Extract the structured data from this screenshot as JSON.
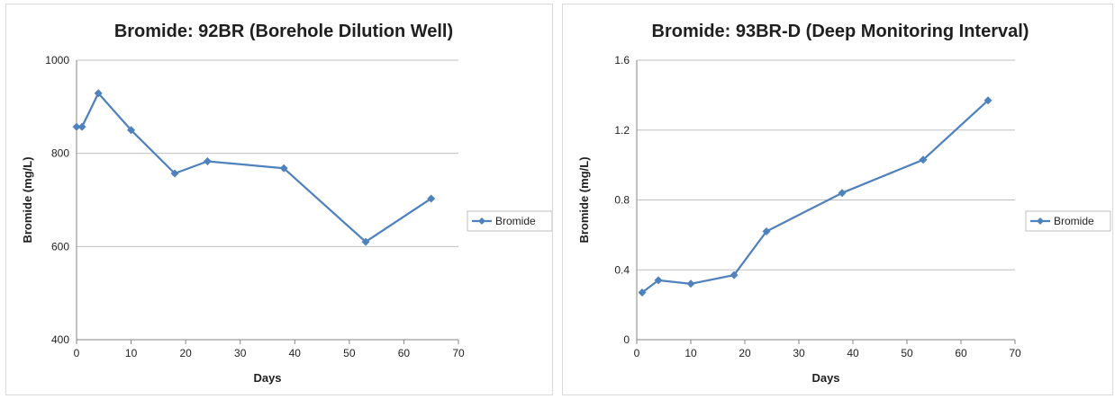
{
  "chart_data": [
    {
      "type": "line",
      "title": "Bromide: 92BR (Borehole Dilution Well)",
      "xlabel": "Days",
      "ylabel": "Bromide (mg/L)",
      "xlim": [
        0,
        70
      ],
      "ylim": [
        400,
        1000
      ],
      "xticks": [
        "0",
        "10",
        "20",
        "30",
        "40",
        "50",
        "60",
        "70"
      ],
      "yticks": [
        "400",
        "600",
        "800",
        "1000"
      ],
      "grid": "horizontal",
      "legend": "right",
      "series": [
        {
          "name": "Bromide",
          "color": "#4f81bd",
          "marker": "diamond",
          "x": [
            0,
            1,
            4,
            10,
            18,
            24,
            38,
            53,
            65
          ],
          "y": [
            857,
            857,
            929,
            850,
            757,
            783,
            768,
            610,
            703
          ]
        }
      ]
    },
    {
      "type": "line",
      "title": "Bromide: 93BR-D (Deep Monitoring Interval)",
      "xlabel": "Days",
      "ylabel": "Bromide (mg/L)",
      "xlim": [
        0,
        70
      ],
      "ylim": [
        0,
        1.6
      ],
      "xticks": [
        "0",
        "10",
        "20",
        "30",
        "40",
        "50",
        "60",
        "70"
      ],
      "yticks": [
        "0",
        "0.4",
        "0.8",
        "1.2",
        "1.6"
      ],
      "grid": "horizontal",
      "legend": "right",
      "series": [
        {
          "name": "Bromide",
          "color": "#4f81bd",
          "marker": "diamond",
          "x": [
            1,
            4,
            10,
            18,
            24,
            38,
            53,
            65
          ],
          "y": [
            0.27,
            0.34,
            0.32,
            0.37,
            0.62,
            0.84,
            1.03,
            1.37
          ]
        }
      ]
    }
  ]
}
